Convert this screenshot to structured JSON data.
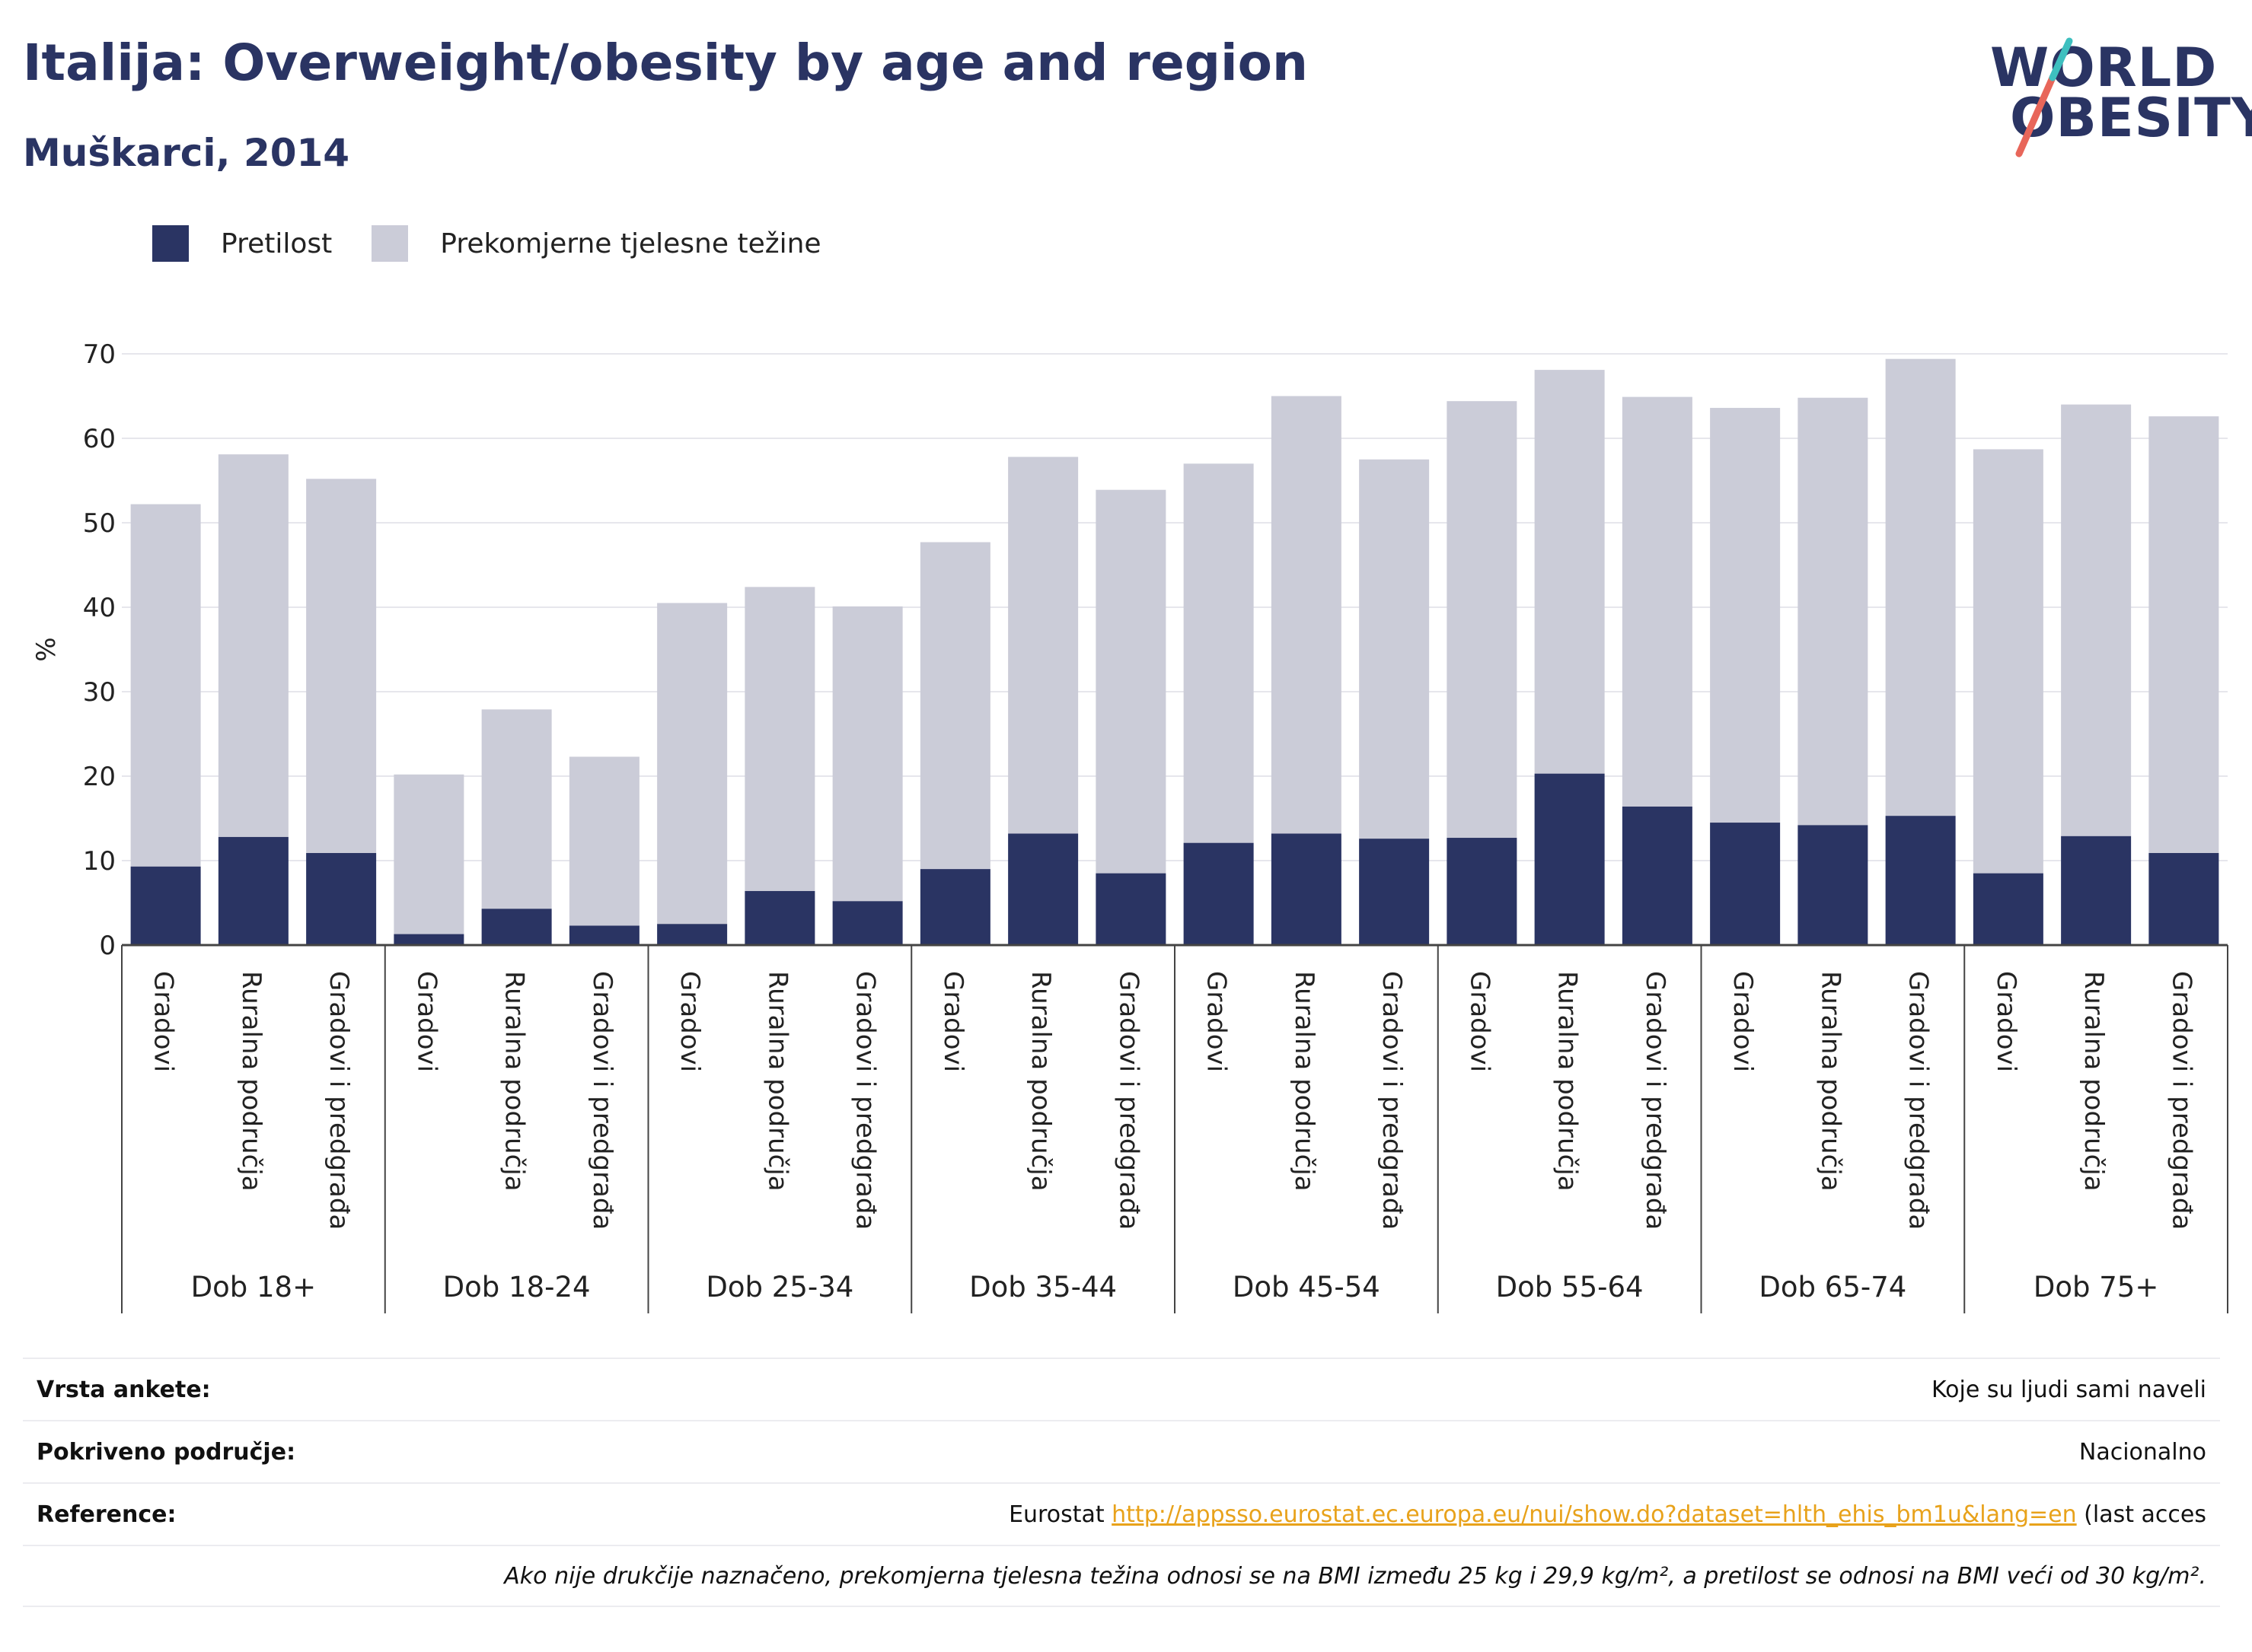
{
  "header": {
    "title": "Italija: Overweight/obesity by age and region",
    "subtitle": "Muškarci, 2014"
  },
  "logo": {
    "line1": "WORLD",
    "line2": "OBESITY"
  },
  "legend": {
    "obesity_label": "Pretilost",
    "overweight_label": "Prekomjerne tjelesne težine"
  },
  "colors": {
    "obesity": "#2a3463",
    "overweight": "#cbccd8",
    "accent_red": "#e8665a",
    "accent_teal": "#3ebfbf",
    "link": "#e8a21b"
  },
  "chart_data": {
    "type": "bar",
    "stacked": true,
    "ylabel": "%",
    "ylim": [
      0,
      70
    ],
    "yticks": [
      0,
      10,
      20,
      30,
      40,
      50,
      60,
      70
    ],
    "grid": true,
    "legend_position": "top-left",
    "groups": [
      {
        "label": "Dob 18+",
        "categories": [
          "Gradovi",
          "Ruralna područja",
          "Gradovi i predgrađa"
        ],
        "obesity": [
          9.3,
          12.8,
          10.9
        ],
        "total": [
          52.2,
          58.1,
          55.2
        ]
      },
      {
        "label": "Dob 18-24",
        "categories": [
          "Gradovi",
          "Ruralna područja",
          "Gradovi i predgrađa"
        ],
        "obesity": [
          1.3,
          4.3,
          2.3
        ],
        "total": [
          20.2,
          27.9,
          22.3
        ]
      },
      {
        "label": "Dob 25-34",
        "categories": [
          "Gradovi",
          "Ruralna područja",
          "Gradovi i predgrađa"
        ],
        "obesity": [
          2.5,
          6.4,
          5.2
        ],
        "total": [
          40.5,
          42.4,
          40.1
        ]
      },
      {
        "label": "Dob 35-44",
        "categories": [
          "Gradovi",
          "Ruralna područja",
          "Gradovi i predgrađa"
        ],
        "obesity": [
          9.0,
          13.2,
          8.5
        ],
        "total": [
          47.7,
          57.8,
          53.9
        ]
      },
      {
        "label": "Dob 45-54",
        "categories": [
          "Gradovi",
          "Ruralna područja",
          "Gradovi i predgrađa"
        ],
        "obesity": [
          12.1,
          13.2,
          12.6
        ],
        "total": [
          57.0,
          65.0,
          57.5
        ]
      },
      {
        "label": "Dob 55-64",
        "categories": [
          "Gradovi",
          "Ruralna područja",
          "Gradovi i predgrađa"
        ],
        "obesity": [
          12.7,
          20.3,
          16.4
        ],
        "total": [
          64.4,
          68.1,
          64.9
        ]
      },
      {
        "label": "Dob 65-74",
        "categories": [
          "Gradovi",
          "Ruralna područja",
          "Gradovi i predgrađa"
        ],
        "obesity": [
          14.5,
          14.2,
          15.3
        ],
        "total": [
          63.6,
          64.8,
          69.4
        ]
      },
      {
        "label": "Dob 75+",
        "categories": [
          "Gradovi",
          "Ruralna područja",
          "Gradovi i predgrađa"
        ],
        "obesity": [
          8.5,
          12.9,
          10.9
        ],
        "total": [
          58.7,
          64.0,
          62.6
        ]
      }
    ]
  },
  "info": {
    "survey_label": "Vrsta ankete:",
    "survey_value": "Koje su ljudi sami naveli",
    "coverage_label": "Pokriveno područje:",
    "coverage_value": "Nacionalno",
    "reference_label": "Reference:",
    "reference_prefix": "Eurostat ",
    "reference_link": "http://appsso.eurostat.ec.europa.eu/nui/show.do?dataset=hlth_ehis_bm1u&lang=en",
    "reference_suffix": " (last acces",
    "note": "Ako nije drukčije naznačeno, prekomjerna tjelesna težina odnosi se na BMI između 25 kg i 29,9 kg/m², a pretilost se odnosi na BMI veći od 30 kg/m²."
  }
}
